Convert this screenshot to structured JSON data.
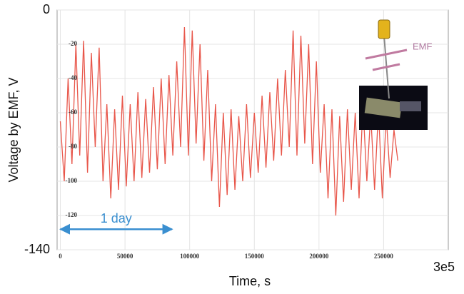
{
  "chart_data": {
    "type": "line",
    "y_label": "Voltage by EMF, V",
    "x_label": "Time, s",
    "color": "#e8564a",
    "grid": true,
    "xlim": [
      -2500,
      300000
    ],
    "ylim": [
      -140,
      0
    ],
    "xticks": [
      0,
      50000,
      100000,
      150000,
      200000,
      250000,
      {
        "value": 300000,
        "label": "3e5"
      }
    ],
    "yticks": [
      0,
      -20,
      -40,
      -60,
      -80,
      -100,
      -120,
      -140
    ],
    "x": [
      0,
      3000,
      6000,
      9000,
      12000,
      15000,
      18000,
      21000,
      24000,
      27000,
      30000,
      33000,
      36000,
      39000,
      42000,
      45000,
      48000,
      51000,
      54000,
      57000,
      60000,
      63000,
      66000,
      69000,
      72000,
      75000,
      78000,
      81000,
      84000,
      87000,
      90000,
      93000,
      96000,
      99000,
      102000,
      105000,
      108000,
      111000,
      114000,
      117000,
      120000,
      123000,
      126000,
      129000,
      132000,
      135000,
      138000,
      141000,
      144000,
      147000,
      150000,
      153000,
      156000,
      159000,
      162000,
      165000,
      168000,
      171000,
      174000,
      177000,
      180000,
      183000,
      186000,
      189000,
      192000,
      195000,
      198000,
      201000,
      204000,
      207000,
      210000,
      213000,
      216000,
      219000,
      222000,
      225000,
      228000,
      231000,
      234000,
      237000,
      240000,
      243000,
      246000,
      249000,
      252000,
      255000,
      258000,
      261000
    ],
    "values": [
      -65,
      -100,
      -40,
      -90,
      -20,
      -85,
      -18,
      -95,
      -25,
      -80,
      -22,
      -100,
      -55,
      -110,
      -58,
      -105,
      -50,
      -103,
      -55,
      -100,
      -48,
      -98,
      -52,
      -95,
      -45,
      -93,
      -40,
      -90,
      -38,
      -85,
      -30,
      -80,
      -10,
      -85,
      -12,
      -78,
      -20,
      -88,
      -35,
      -100,
      -55,
      -115,
      -60,
      -108,
      -58,
      -105,
      -62,
      -100,
      -55,
      -98,
      -60,
      -95,
      -50,
      -92,
      -48,
      -88,
      -40,
      -85,
      -35,
      -80,
      -12,
      -85,
      -15,
      -78,
      -20,
      -90,
      -30,
      -95,
      -55,
      -110,
      -58,
      -120,
      -62,
      -112,
      -58,
      -105,
      -60,
      -110,
      -55,
      -100,
      -60,
      -105,
      -58,
      -110,
      -62,
      -98,
      -70,
      -88
    ],
    "day_arrow": {
      "label": "1 day",
      "x": [
        0,
        86400
      ],
      "y": -128,
      "color": "#3a8fd0"
    },
    "inset_label": "EMF"
  }
}
